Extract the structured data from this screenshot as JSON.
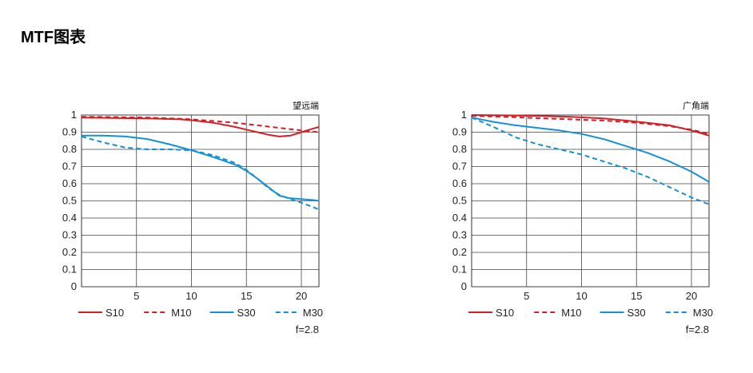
{
  "page": {
    "title": "MTF图表"
  },
  "chart_data": [
    {
      "type": "line",
      "title": "望远端",
      "note": "f=2.8",
      "xlabel": "",
      "ylabel": "",
      "xlim": [
        0,
        21.6
      ],
      "ylim": [
        0,
        1
      ],
      "xticks": [
        5,
        10,
        15,
        20
      ],
      "yticks": [
        0,
        0.1,
        0.2,
        0.3,
        0.4,
        0.5,
        0.6,
        0.7,
        0.8,
        0.9,
        1
      ],
      "ytick_labels": [
        "0",
        "0.1",
        "0.2",
        "0.3",
        "0.4",
        "0.5",
        "0.6",
        "0.7",
        "0.8",
        "0.9",
        "1"
      ],
      "xtick_labels": [
        "5",
        "10",
        "15",
        "20"
      ],
      "grid": true,
      "legend_position": "bottom",
      "series": [
        {
          "name": "S10",
          "color": "#d41f26",
          "style": "solid",
          "x": [
            0,
            3,
            6,
            9,
            10,
            12,
            14,
            15,
            16,
            17,
            18,
            19,
            20,
            21,
            21.6
          ],
          "y": [
            0.985,
            0.983,
            0.98,
            0.975,
            0.97,
            0.955,
            0.93,
            0.915,
            0.9,
            0.885,
            0.875,
            0.88,
            0.9,
            0.92,
            0.93
          ]
        },
        {
          "name": "M10",
          "color": "#d41f26",
          "style": "dashed",
          "x": [
            0,
            3,
            6,
            9,
            10,
            12,
            14,
            16,
            18,
            20,
            21.6
          ],
          "y": [
            0.99,
            0.988,
            0.985,
            0.978,
            0.975,
            0.965,
            0.955,
            0.94,
            0.925,
            0.91,
            0.9
          ]
        },
        {
          "name": "S30",
          "color": "#1590d8",
          "style": "solid",
          "x": [
            0,
            2,
            4,
            6,
            8,
            10,
            12,
            14,
            15,
            16,
            17,
            18,
            19,
            20,
            21,
            21.6
          ],
          "y": [
            0.88,
            0.88,
            0.875,
            0.86,
            0.83,
            0.795,
            0.755,
            0.71,
            0.675,
            0.63,
            0.58,
            0.53,
            0.515,
            0.51,
            0.505,
            0.5
          ]
        },
        {
          "name": "M30",
          "color": "#1590d8",
          "style": "dashed",
          "x": [
            0,
            2,
            4,
            6,
            8,
            10,
            12,
            14,
            15,
            16,
            17,
            18,
            19,
            20,
            21,
            21.6
          ],
          "y": [
            0.875,
            0.84,
            0.81,
            0.8,
            0.8,
            0.795,
            0.765,
            0.72,
            0.68,
            0.63,
            0.575,
            0.535,
            0.51,
            0.49,
            0.465,
            0.45
          ]
        }
      ]
    },
    {
      "type": "line",
      "title": "广角端",
      "note": "f=2.8",
      "xlabel": "",
      "ylabel": "",
      "xlim": [
        0,
        21.6
      ],
      "ylim": [
        0,
        1
      ],
      "xticks": [
        5,
        10,
        15,
        20
      ],
      "yticks": [
        0,
        0.1,
        0.2,
        0.3,
        0.4,
        0.5,
        0.6,
        0.7,
        0.8,
        0.9,
        1
      ],
      "ytick_labels": [
        "0",
        "0.1",
        "0.2",
        "0.3",
        "0.4",
        "0.5",
        "0.6",
        "0.7",
        "0.8",
        "0.9",
        "1"
      ],
      "xtick_labels": [
        "5",
        "10",
        "15",
        "20"
      ],
      "grid": true,
      "legend_position": "bottom",
      "series": [
        {
          "name": "S10",
          "color": "#d41f26",
          "style": "solid",
          "x": [
            0,
            3,
            6,
            9,
            12,
            14,
            16,
            18,
            20,
            21.6
          ],
          "y": [
            1.0,
            0.998,
            0.995,
            0.99,
            0.98,
            0.968,
            0.955,
            0.94,
            0.91,
            0.88
          ]
        },
        {
          "name": "M10",
          "color": "#d41f26",
          "style": "dashed",
          "x": [
            0,
            3,
            6,
            9,
            12,
            15,
            18,
            20,
            21.6
          ],
          "y": [
            0.995,
            0.99,
            0.982,
            0.975,
            0.968,
            0.955,
            0.935,
            0.915,
            0.89
          ]
        },
        {
          "name": "S30",
          "color": "#1590d8",
          "style": "solid",
          "x": [
            0,
            2,
            4,
            6,
            8,
            10,
            12,
            14,
            16,
            18,
            20,
            21.6
          ],
          "y": [
            0.985,
            0.96,
            0.94,
            0.925,
            0.91,
            0.89,
            0.86,
            0.82,
            0.78,
            0.73,
            0.67,
            0.61
          ]
        },
        {
          "name": "M30",
          "color": "#1590d8",
          "style": "dashed",
          "x": [
            0,
            2,
            4,
            6,
            8,
            10,
            12,
            14,
            16,
            18,
            20,
            21.6
          ],
          "y": [
            0.985,
            0.93,
            0.87,
            0.83,
            0.8,
            0.77,
            0.73,
            0.69,
            0.64,
            0.58,
            0.52,
            0.48
          ]
        }
      ]
    }
  ]
}
